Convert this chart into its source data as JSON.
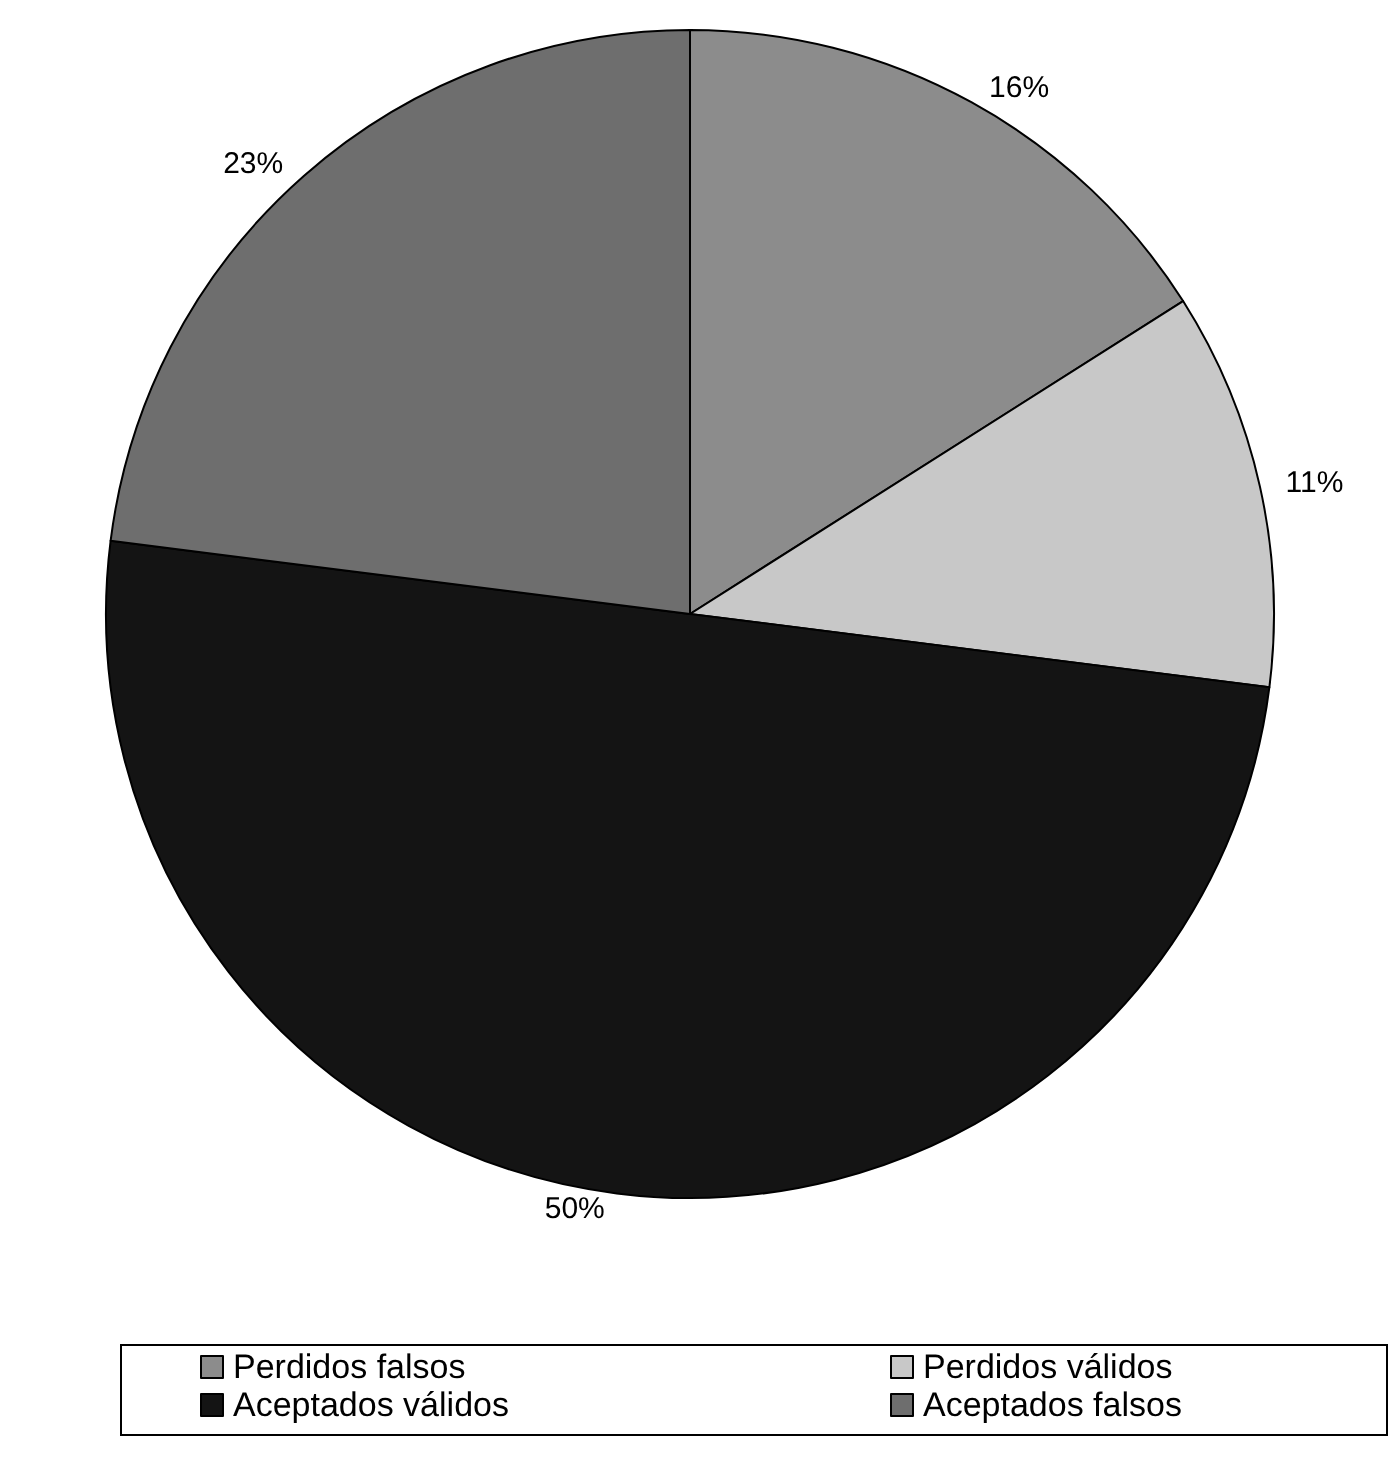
{
  "chart_data": {
    "type": "pie",
    "categories": [
      "Perdidos falsos",
      "Perdidos válidos",
      "Aceptados válidos",
      "Aceptados falsos"
    ],
    "values": [
      16,
      11,
      50,
      23
    ],
    "colors": [
      "#8c8c8c",
      "#c8c8c8",
      "#141414",
      "#6e6e6e"
    ],
    "value_labels": [
      "16%",
      "11%",
      "50%",
      "23%"
    ],
    "legend": "bottom"
  }
}
